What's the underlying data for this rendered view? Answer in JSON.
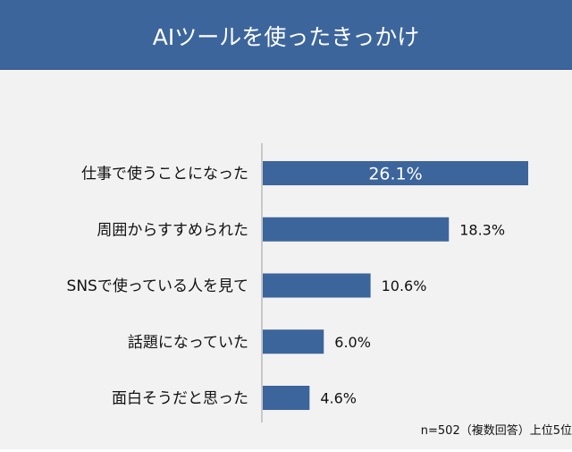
{
  "chart_data": {
    "type": "bar",
    "orientation": "horizontal",
    "title": "AIツールを使ったきっかけ",
    "categories": [
      "仕事で使うことになった",
      "周囲からすすめられた",
      "SNSで使っている人を見て",
      "話題になっていた",
      "面白そうだと思った"
    ],
    "values": [
      26.1,
      18.3,
      10.6,
      6.0,
      4.6
    ],
    "value_labels": [
      "26.1%",
      "18.3%",
      "10.6%",
      "6.0%",
      "4.6%"
    ],
    "xlabel": "",
    "ylabel": "",
    "xlim": [
      0,
      28
    ],
    "grid": false,
    "note": "n=502（複数回答）上位5位",
    "colors": {
      "bar": "#3c659c",
      "header": "#3c659c",
      "background": "#f2f2f2"
    }
  }
}
